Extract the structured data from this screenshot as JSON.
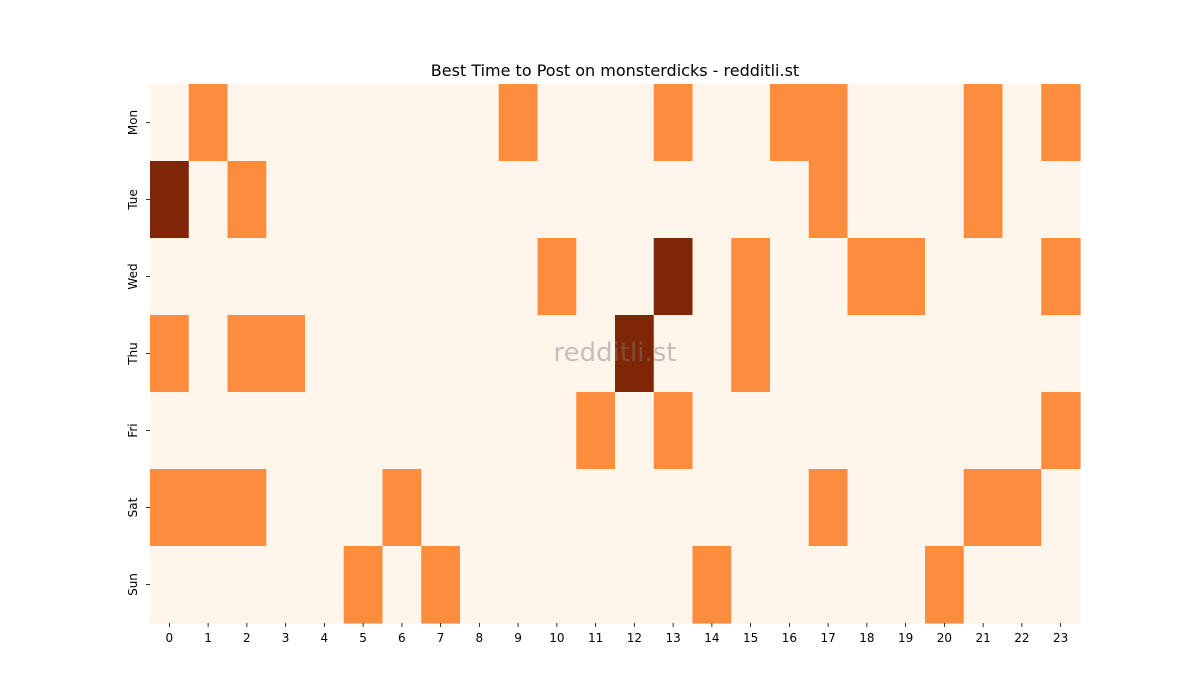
{
  "chart_data": {
    "type": "heatmap",
    "title": "Best Time to Post on monsterdicks - redditli.st",
    "watermark": "redditli.st",
    "xlabel": "",
    "ylabel": "",
    "x_labels": [
      "0",
      "1",
      "2",
      "3",
      "4",
      "5",
      "6",
      "7",
      "8",
      "9",
      "10",
      "11",
      "12",
      "13",
      "14",
      "15",
      "16",
      "17",
      "18",
      "19",
      "20",
      "21",
      "22",
      "23"
    ],
    "y_labels": [
      "Mon",
      "Tue",
      "Wed",
      "Thu",
      "Fri",
      "Sat",
      "Sun"
    ],
    "values": [
      [
        0,
        1,
        0,
        0,
        0,
        0,
        0,
        0,
        0,
        1,
        0,
        0,
        0,
        1,
        0,
        0,
        1,
        1,
        0,
        0,
        0,
        1,
        0,
        1
      ],
      [
        2,
        0,
        1,
        0,
        0,
        0,
        0,
        0,
        0,
        0,
        0,
        0,
        0,
        0,
        0,
        0,
        0,
        1,
        0,
        0,
        0,
        1,
        0,
        0
      ],
      [
        0,
        0,
        0,
        0,
        0,
        0,
        0,
        0,
        0,
        0,
        1,
        0,
        0,
        2,
        0,
        1,
        0,
        0,
        1,
        1,
        0,
        0,
        0,
        1
      ],
      [
        1,
        0,
        1,
        1,
        0,
        0,
        0,
        0,
        0,
        0,
        0,
        0,
        2,
        0,
        0,
        1,
        0,
        0,
        0,
        0,
        0,
        0,
        0,
        0
      ],
      [
        0,
        0,
        0,
        0,
        0,
        0,
        0,
        0,
        0,
        0,
        0,
        1,
        0,
        1,
        0,
        0,
        0,
        0,
        0,
        0,
        0,
        0,
        0,
        1
      ],
      [
        1,
        1,
        1,
        0,
        0,
        0,
        1,
        0,
        0,
        0,
        0,
        0,
        0,
        0,
        0,
        0,
        0,
        1,
        0,
        0,
        0,
        1,
        1,
        0
      ],
      [
        0,
        0,
        0,
        0,
        0,
        1,
        0,
        1,
        0,
        0,
        0,
        0,
        0,
        0,
        1,
        0,
        0,
        0,
        0,
        0,
        1,
        0,
        0,
        0
      ]
    ],
    "colormap": "Oranges",
    "colors": {
      "low": "#fff5eb",
      "mid": "#fd8d3c",
      "high": "#7f2704"
    },
    "grid": false,
    "legend": "none"
  }
}
